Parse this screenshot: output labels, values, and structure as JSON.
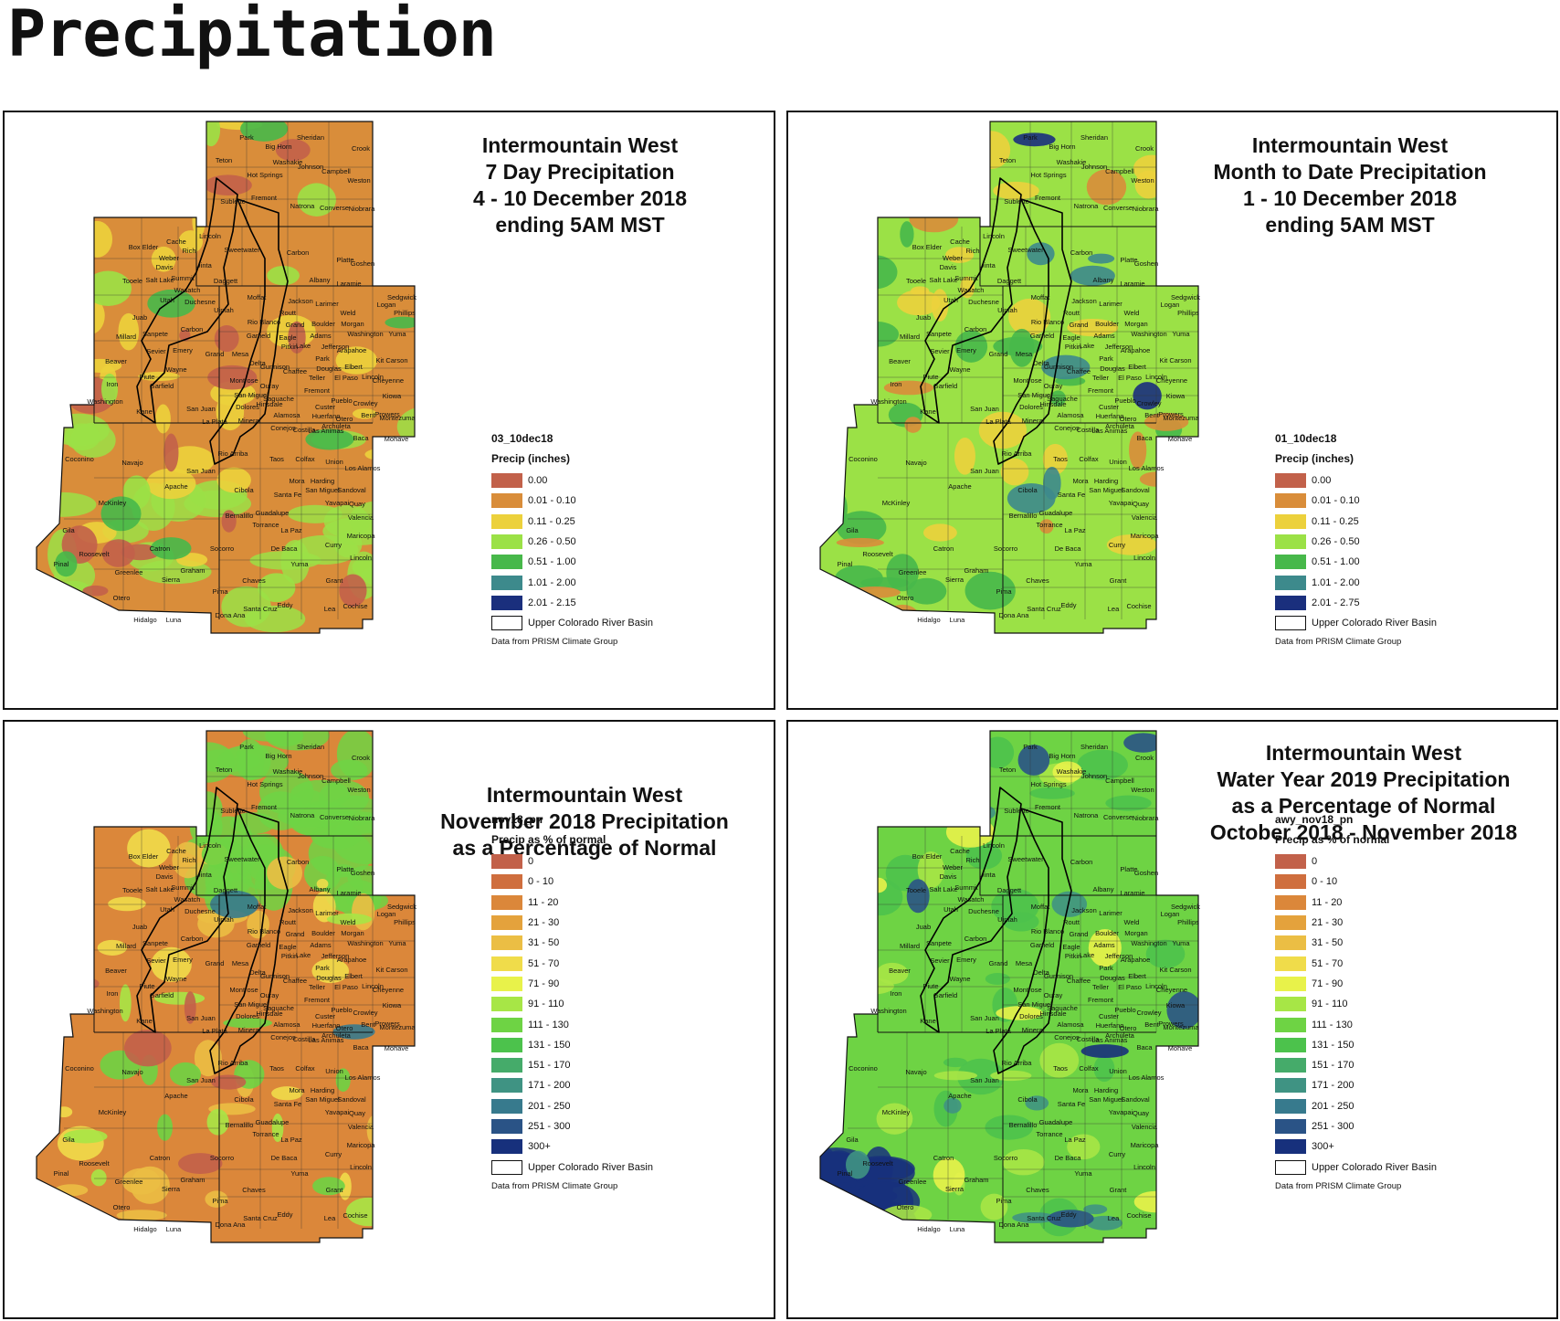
{
  "page_title": "Precipitation",
  "county_labels": [
    "Park",
    "Big Horn",
    "Sheridan",
    "Crook",
    "Teton",
    "Washakie",
    "Johnson",
    "Campbell",
    "Hot Springs",
    "Weston",
    "Fremont",
    "Natrona",
    "Converse",
    "Niobrara",
    "Sublette",
    "Lincoln",
    "Box Elder",
    "Cache",
    "Rich",
    "Weber",
    "Sweetwater",
    "Carbon",
    "Platte",
    "Goshen",
    "Davis",
    "Uinta",
    "Tooele",
    "Salt Lake",
    "Summit",
    "Daggett",
    "Albany",
    "Laramie",
    "Wasatch",
    "Utah",
    "Duchesne",
    "Moffat",
    "Jackson",
    "Larimer",
    "Weld",
    "Logan",
    "Sedgwick",
    "Phillips",
    "Juab",
    "Uintah",
    "Routt",
    "Grand",
    "Boulder",
    "Morgan",
    "Rio Blanco",
    "Garfield",
    "Eagle",
    "Adams",
    "Washington",
    "Yuma",
    "Millard",
    "Sanpete",
    "Carbon",
    "Emery",
    "Grand",
    "Mesa",
    "Pitkin",
    "Lake",
    "Jefferson",
    "Arapahoe",
    "Sevier",
    "Delta",
    "Park",
    "Douglas",
    "Elbert",
    "Kit Carson",
    "Beaver",
    "Wayne",
    "Gunnison",
    "Chaffee",
    "Teller",
    "El Paso",
    "Lincoln",
    "Cheyenne",
    "Piute",
    "Garfield",
    "Montrose",
    "Ouray",
    "Fremont",
    "Iron",
    "San Miguel",
    "Saguache",
    "Pueblo",
    "Crowley",
    "Kiowa",
    "Washington",
    "Kane",
    "San Juan",
    "Dolores",
    "Hinsdale",
    "Custer",
    "Otero",
    "Bent",
    "Prowers",
    "Montezuma",
    "La Plata",
    "Mineral",
    "Alamosa",
    "Huerfano",
    "Archuleta",
    "Conejos",
    "Costilla",
    "Las Animas",
    "Baca",
    "Mohave",
    "Coconino",
    "Navajo",
    "Apache",
    "San Juan",
    "Rio Arriba",
    "Taos",
    "Colfax",
    "Union",
    "Los Alamos",
    "Mora",
    "Harding",
    "Sandoval",
    "Santa Fe",
    "San Miguel",
    "Yavapai",
    "McKinley",
    "Cibola",
    "Bernalillo",
    "Guadalupe",
    "Quay",
    "Valencia",
    "Torrance",
    "La Paz",
    "Gila",
    "Catron",
    "Socorro",
    "De Baca",
    "Curry",
    "Maricopa",
    "Roosevelt",
    "Lincoln",
    "Yuma",
    "Pinal",
    "Greenlee",
    "Graham",
    "Sierra",
    "Chaves",
    "Grant",
    "Pima",
    "Otero",
    "Eddy",
    "Lea",
    "Cochise",
    "Hidalgo",
    "Luna",
    "Dona Ana",
    "Santa Cruz"
  ],
  "panels": [
    {
      "title_lines": [
        "Intermountain West",
        "7 Day Precipitation",
        "4 - 10 December 2018",
        "ending 5AM MST"
      ],
      "legend_name": "03_10dec18",
      "legend_label": "Precip (inches)",
      "legend": [
        {
          "label": "0.00",
          "color": "#c2614a"
        },
        {
          "label": "0.01 - 0.10",
          "color": "#d98d3a"
        },
        {
          "label": "0.11 - 0.25",
          "color": "#ecd13c"
        },
        {
          "label": "0.26 - 0.50",
          "color": "#9be146"
        },
        {
          "label": "0.51 - 1.00",
          "color": "#47b84a"
        },
        {
          "label": "1.01 - 2.00",
          "color": "#3d8a8c"
        },
        {
          "label": "2.01 - 2.15",
          "color": "#1a2f7d"
        }
      ],
      "basin_label": "Upper Colorado River Basin",
      "source": "Data from PRISM Climate Group"
    },
    {
      "title_lines": [
        "Intermountain West",
        "Month to Date Precipitation",
        "1 - 10 December 2018",
        "ending 5AM MST"
      ],
      "legend_name": "01_10dec18",
      "legend_label": "Precip (inches)",
      "legend": [
        {
          "label": "0.00",
          "color": "#c2614a"
        },
        {
          "label": "0.01 - 0.10",
          "color": "#d98d3a"
        },
        {
          "label": "0.11 - 0.25",
          "color": "#ecd13c"
        },
        {
          "label": "0.26 - 0.50",
          "color": "#9be146"
        },
        {
          "label": "0.51 - 1.00",
          "color": "#47b84a"
        },
        {
          "label": "1.01 - 2.00",
          "color": "#3d8a8c"
        },
        {
          "label": "2.01 - 2.75",
          "color": "#1a2f7d"
        }
      ],
      "basin_label": "Upper Colorado River Basin",
      "source": "Data from PRISM Climate Group"
    },
    {
      "title_lines": [
        "Intermountain West",
        "November 2018 Precipitation",
        "as a Percentage of Normal"
      ],
      "legend_name": "nov18_pn",
      "legend_label": "Precip as % of normal",
      "legend": [
        {
          "label": "0",
          "color": "#c2614a"
        },
        {
          "label": "0 - 10",
          "color": "#cf6e3e"
        },
        {
          "label": "11 - 20",
          "color": "#db873a"
        },
        {
          "label": "21 - 30",
          "color": "#e4a23c"
        },
        {
          "label": "31 - 50",
          "color": "#ebbe44"
        },
        {
          "label": "51 - 70",
          "color": "#f0dc4a"
        },
        {
          "label": "71 - 90",
          "color": "#e8f24a"
        },
        {
          "label": "91 - 110",
          "color": "#a7e646"
        },
        {
          "label": "111 - 130",
          "color": "#6ed344"
        },
        {
          "label": "131 - 150",
          "color": "#4cc24c"
        },
        {
          "label": "151 - 170",
          "color": "#45ab6a"
        },
        {
          "label": "171 - 200",
          "color": "#3f9383"
        },
        {
          "label": "201 - 250",
          "color": "#377a8d"
        },
        {
          "label": "251 - 300",
          "color": "#2a5386"
        },
        {
          "label": "300+",
          "color": "#17307c"
        }
      ],
      "basin_label": "Upper Colorado River Basin",
      "source": "Data from PRISM Climate Group"
    },
    {
      "title_lines": [
        "Intermountain West",
        "Water Year 2019 Precipitation",
        "as a Percentage of Normal",
        "October 2018 - November 2018"
      ],
      "legend_name": "awy_nov18_pn",
      "legend_label": "Precip as % of normal",
      "legend": [
        {
          "label": "0",
          "color": "#c2614a"
        },
        {
          "label": "0 - 10",
          "color": "#cf6e3e"
        },
        {
          "label": "11 - 20",
          "color": "#db873a"
        },
        {
          "label": "21 - 30",
          "color": "#e4a23c"
        },
        {
          "label": "31 - 50",
          "color": "#ebbe44"
        },
        {
          "label": "51 - 70",
          "color": "#f0dc4a"
        },
        {
          "label": "71 - 90",
          "color": "#e8f24a"
        },
        {
          "label": "91 - 110",
          "color": "#a7e646"
        },
        {
          "label": "111 - 130",
          "color": "#6ed344"
        },
        {
          "label": "131 - 150",
          "color": "#4cc24c"
        },
        {
          "label": "151 - 170",
          "color": "#45ab6a"
        },
        {
          "label": "171 - 200",
          "color": "#3f9383"
        },
        {
          "label": "201 - 250",
          "color": "#377a8d"
        },
        {
          "label": "251 - 300",
          "color": "#2a5386"
        },
        {
          "label": "300+",
          "color": "#17307c"
        }
      ],
      "basin_label": "Upper Colorado River Basin",
      "source": "Data from PRISM Climate Group"
    }
  ]
}
